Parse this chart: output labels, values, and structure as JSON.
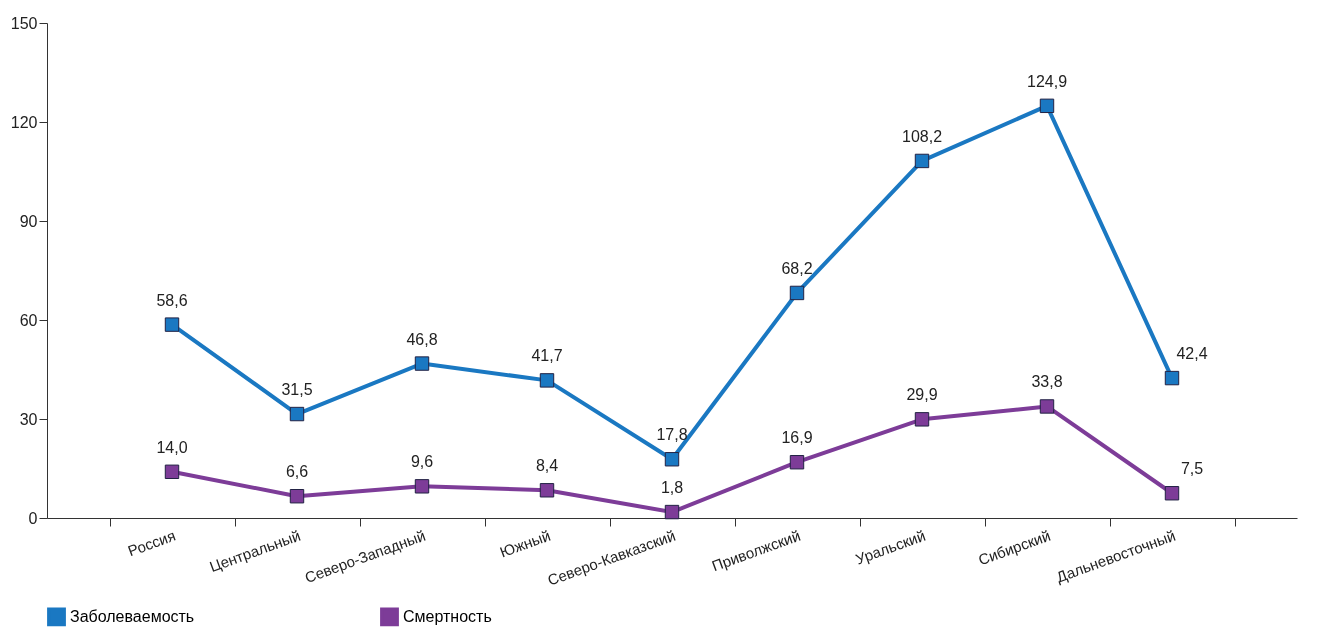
{
  "chart_data": {
    "type": "line",
    "categories": [
      "Россия",
      "Центральный",
      "Северо-Западный",
      "Южный",
      "Северо-Кавказский",
      "Приволжский",
      "Уральский",
      "Сибирский",
      "Дальневосточный"
    ],
    "series": [
      {
        "name": "Заболеваемость",
        "color": "#1a78c2",
        "values": [
          58.6,
          31.5,
          46.8,
          41.7,
          17.8,
          68.2,
          108.2,
          124.9,
          42.4
        ],
        "value_labels": [
          "58,6",
          "31,5",
          "46,8",
          "41,7",
          "17,8",
          "68,2",
          "108,2",
          "124,9",
          "42,4"
        ]
      },
      {
        "name": "Смертность",
        "color": "#7d3c98",
        "values": [
          14.0,
          6.6,
          9.6,
          8.4,
          1.8,
          16.9,
          29.9,
          33.8,
          7.5
        ],
        "value_labels": [
          "14,0",
          "6,6",
          "9,6",
          "8,4",
          "1,8",
          "16,9",
          "29,9",
          "33,8",
          "7,5"
        ]
      }
    ],
    "ylim": [
      0,
      150
    ],
    "yticks": [
      0,
      30,
      60,
      90,
      120,
      150
    ],
    "grid": false,
    "legend": "bottom",
    "marker": "square",
    "line_style": "solid"
  }
}
